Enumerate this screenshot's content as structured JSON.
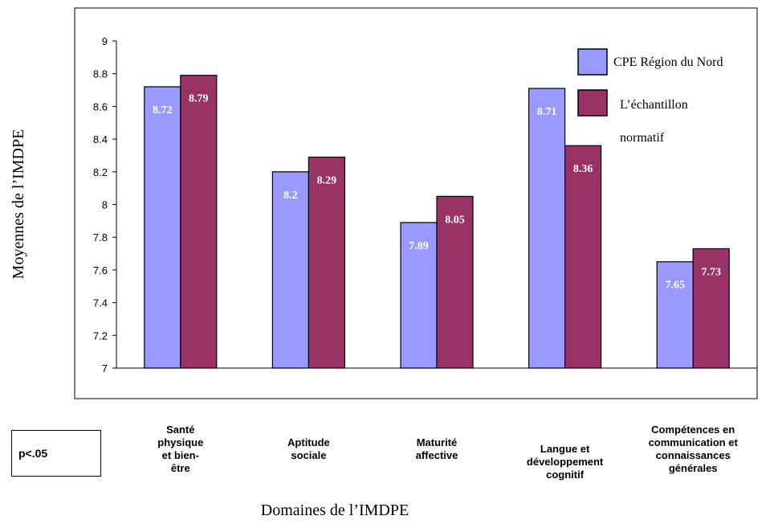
{
  "chart_data": {
    "type": "bar",
    "categories": [
      "Santé\nphysique\net bien-\nêtre",
      "Aptitude\nsociale",
      "Maturité\naffective",
      "Langue et\ndéveloppement\ncognitif",
      "Compétences en\ncommunication et\nconnaissances\ngénérales"
    ],
    "series": [
      {
        "name": "CPE Région du Nord",
        "values": [
          8.72,
          8.2,
          7.89,
          8.71,
          7.65
        ],
        "labels": [
          "8.72",
          "8.2",
          "7.89",
          "8.71",
          "7.65"
        ],
        "color": "#9999ff"
      },
      {
        "name": "L’échantillon normatif",
        "values": [
          8.79,
          8.29,
          8.05,
          8.36,
          7.73
        ],
        "labels": [
          "8.79",
          "8.29",
          "8.05",
          "8.36",
          "7.73"
        ],
        "color": "#993366"
      }
    ],
    "xlabel": "Domaines de l’IMDPE",
    "ylabel": "Moyennes de l’IMDPE",
    "ylim": [
      7,
      9
    ],
    "yticks": [
      "7",
      "7.2",
      "7.4",
      "7.6",
      "7.8",
      "8",
      "8.2",
      "8.4",
      "8.6",
      "8.8",
      "9"
    ],
    "grid": false,
    "legend_position": "top-right",
    "legend_lines": [
      "CPE Région du Nord",
      "L’échantillon",
      "normatif"
    ]
  },
  "note": "p<.05"
}
